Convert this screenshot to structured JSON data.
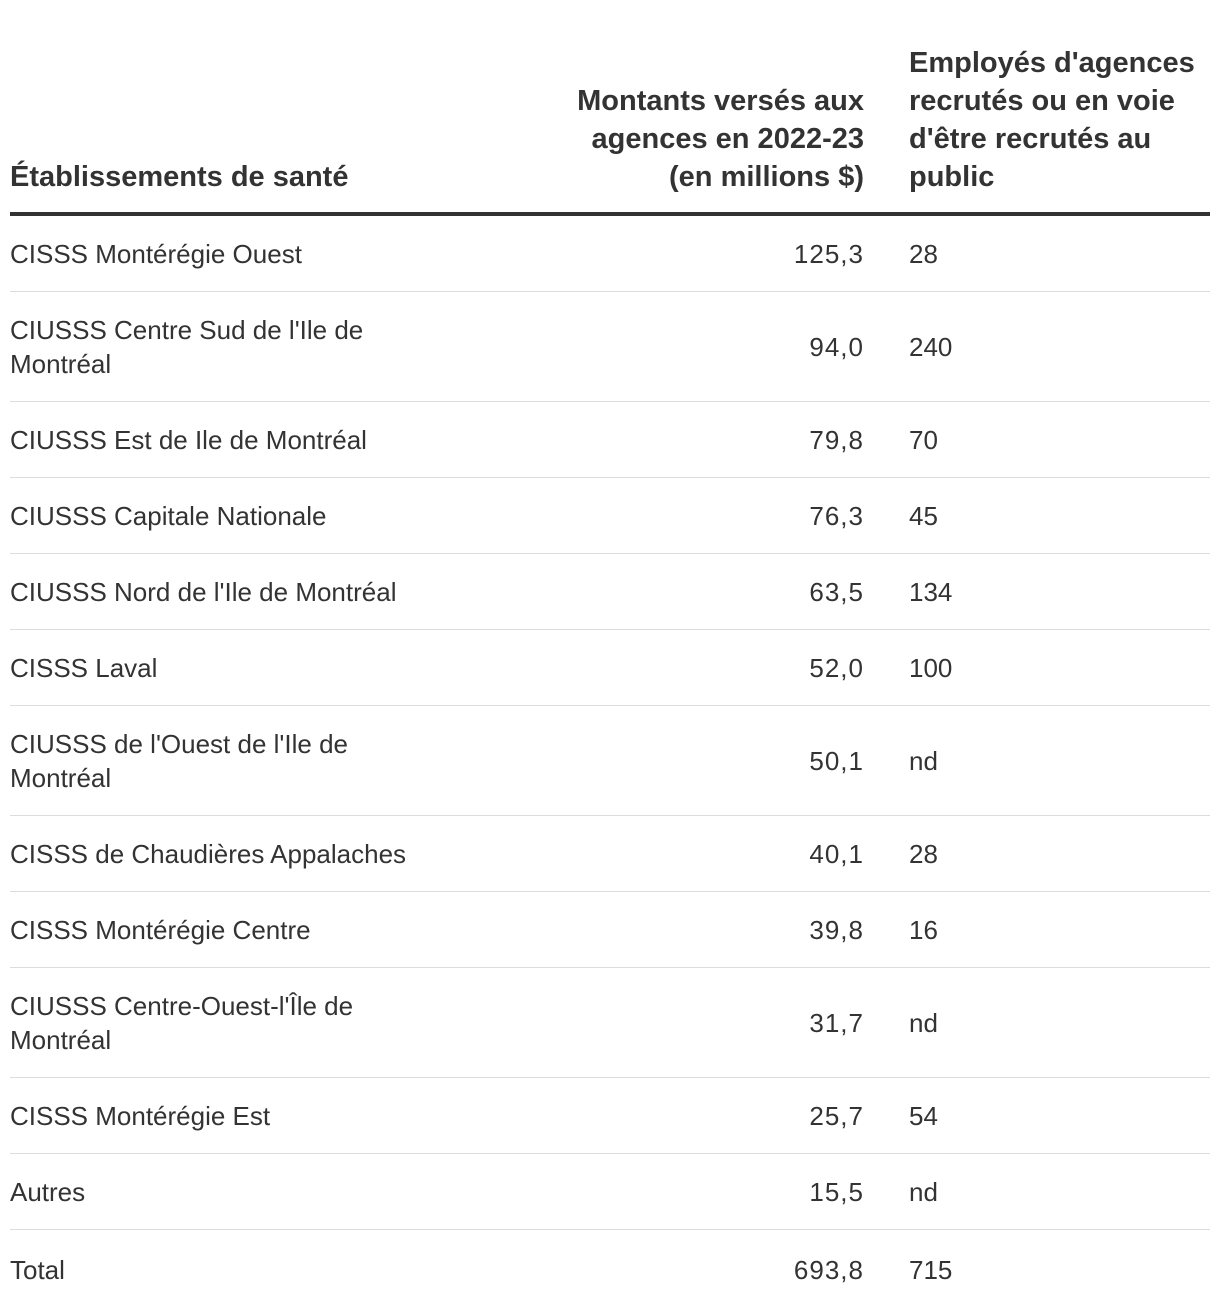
{
  "chart_data": {
    "type": "table",
    "columns": [
      "Établissements de santé",
      "Montants versés aux agences en 2022-23 (en millions $)",
      "Employés d'agences recrutés ou en voie d'être recrutés au public"
    ],
    "header": {
      "name": "Établissements de santé",
      "amount_line1": "Montants versés aux",
      "amount_line2": "agences en 2022-23",
      "amount_line3": "(en millions $)",
      "emp_line1": "Employés d'agences",
      "emp_line2": "recrutés ou en voie",
      "emp_line3": "d'être recrutés au",
      "emp_line4": "public"
    },
    "rows": [
      {
        "name": "CISSS Montérégie Ouest",
        "amount": "125,3",
        "employees": "28"
      },
      {
        "name": "CIUSSS Centre Sud de l'Ile de Montréal",
        "amount": "94,0",
        "employees": "240"
      },
      {
        "name": "CIUSSS Est de Ile de Montréal",
        "amount": "79,8",
        "employees": "70"
      },
      {
        "name": "CIUSSS Capitale Nationale",
        "amount": "76,3",
        "employees": "45"
      },
      {
        "name": "CIUSSS Nord de l'Ile de Montréal",
        "amount": "63,5",
        "employees": "134"
      },
      {
        "name": "CISSS Laval",
        "amount": "52,0",
        "employees": "100"
      },
      {
        "name": "CIUSSS de l'Ouest de l'Ile de Montréal",
        "amount": "50,1",
        "employees": "nd"
      },
      {
        "name": "CISSS de Chaudières Appalaches",
        "amount": "40,1",
        "employees": "28"
      },
      {
        "name": "CISSS Montérégie Centre",
        "amount": "39,8",
        "employees": "16"
      },
      {
        "name": "CIUSSS Centre-Ouest-l'Île de Montréal",
        "amount": "31,7",
        "employees": "nd"
      },
      {
        "name": "CISSS Montérégie Est",
        "amount": "25,7",
        "employees": "54"
      },
      {
        "name": "Autres",
        "amount": "15,5",
        "employees": "nd"
      },
      {
        "name": "Total",
        "amount": "693,8",
        "employees": "715"
      }
    ]
  }
}
